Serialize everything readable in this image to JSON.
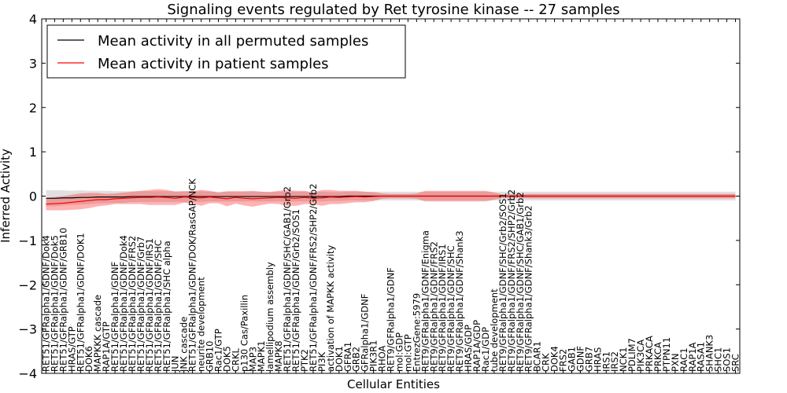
{
  "chart_data": {
    "type": "line",
    "title": "Signaling events regulated by Ret tyrosine kinase -- 27 samples",
    "xlabel": "Cellular Entities",
    "ylabel": "Inferred Activity",
    "ylim": [
      -4,
      4
    ],
    "yticks": [
      -4,
      -3,
      -2,
      -1,
      0,
      1,
      2,
      3,
      4
    ],
    "grid": false,
    "legend_position": "top-left",
    "categories": [
      "RET51/GFRalpha1/GDNF/Dok4",
      "RET51/GFRalpha1/GDNF/Dok5",
      "RET51/GFRalpha1/GDNF/GRB10",
      "HRAS/GTP",
      "RET51/GFRalpha1/GDNF/DOK1",
      "DOK6",
      "MAPKKK cascade",
      "RAP1A/GTP",
      "RET51/GFRalpha1/GDNF",
      "RET51/GFRalpha1/GDNF/Dok4",
      "RET51/GFRalpha1/GDNF/FRS2",
      "RET51/GFRalpha1/GDNF/Grb7",
      "RET51/GFRalpha1/GDNF/IRS1",
      "RET51/GFRalpha1/GDNF/SHC",
      "RET51/GFRalpha1/SHC alpha",
      "JUN",
      "JNK cascade",
      "RET51/GFRalpha1/GDNF/DOK/RasGAP/NCK",
      "neurite development",
      "GRB10",
      "Rac1/GTP",
      "DOK5",
      "CRKL",
      "p130 Cas/Paxillin",
      "MAP3",
      "MAPK1",
      "lamellipodium assembly",
      "MAPK8",
      "RET51/GFRalpha1/GDNF/SHC/GAB1/Grb2",
      "RET51/GFRalpha1/GDNF/Grb2/SOS1",
      "PTK2",
      "RET51/GFRalpha1/GDNF/FRS2/SHP2/Grb2",
      "PI3K",
      "activation of MAPKK activity",
      "DOK1",
      "GFRA1",
      "GRB2",
      "GFRalpha1/GDNF",
      "PIK3R1",
      "RHOA",
      "RET9/GFRalpha1/GDNF",
      "mol:GDP",
      "mol:GTP",
      "EntrezGene:5979",
      "RET9/GFRalpha1/GDNF/Enigma",
      "RET9/GFRalpha1/GDNF/FRS2",
      "RET9/GFRalpha1/GDNF/IRS1",
      "RET9/GFRalpha1/GDNF/SHC",
      "RET9/GFRalpha1/GDNF/Shank3",
      "HRAS/GDP",
      "RAP1A/GDP",
      "Rac1/GDP",
      "tube development",
      "RET9/GFRalpha1/GDNF/SHC/Grb2/SOS1",
      "RET9/GFRalpha1/GDNF/FRS2/SHP2/Grb2",
      "RET9/GFRalpha1/GDNF/SHC/GAB1/Grb2",
      "RET9/GFRalpha1/GDNF/Shank3/Grb2",
      "BCAR1",
      "CRK",
      "DOK4",
      "FRS2",
      "GAB1",
      "GDNF",
      "GRB7",
      "HRAS",
      "IRS1",
      "IRS2",
      "NCK1",
      "PDLIM7",
      "PIK3CA",
      "PRKACA",
      "PRKCA",
      "PTPN11",
      "PXN",
      "RAC1",
      "RAP1A",
      "RASA1",
      "SHANK3",
      "SHC1",
      "SOS1",
      "SRC"
    ],
    "series": [
      {
        "name": "Mean activity in all permuted samples",
        "color": "#000000",
        "values": [
          -0.05,
          -0.05,
          -0.04,
          -0.04,
          -0.03,
          -0.03,
          -0.02,
          -0.02,
          -0.02,
          -0.02,
          -0.01,
          -0.01,
          -0.01,
          -0.01,
          -0.01,
          -0.01,
          -0.01,
          -0.01,
          -0.01,
          -0.01,
          -0.01,
          -0.01,
          -0.01,
          -0.01,
          -0.01,
          -0.01,
          -0.01,
          -0.01,
          -0.01,
          -0.01,
          -0.01,
          -0.01,
          -0.01,
          -0.01,
          -0.01,
          0.0,
          0.0,
          0.0,
          0.0,
          0.0,
          0.0,
          0.0,
          0.0,
          0.0,
          0.0,
          0.0,
          0.0,
          0.0,
          0.0,
          0.0,
          0.0,
          0.0,
          0.0,
          0.0,
          0.0,
          0.0,
          0.0,
          0.0,
          0.0,
          0.0,
          0.0,
          0.0,
          0.0,
          0.0,
          0.0,
          0.0,
          0.0,
          0.0,
          0.0,
          0.0,
          0.0,
          0.0,
          0.0,
          0.0,
          0.0,
          0.0,
          0.0,
          0.0,
          0.0,
          0.0,
          0.0
        ],
        "band": [
          0.18,
          0.18,
          0.17,
          0.16,
          0.16,
          0.15,
          0.14,
          0.14,
          0.13,
          0.13,
          0.12,
          0.12,
          0.12,
          0.12,
          0.12,
          0.12,
          0.12,
          0.12,
          0.12,
          0.11,
          0.11,
          0.11,
          0.11,
          0.11,
          0.11,
          0.11,
          0.11,
          0.11,
          0.11,
          0.11,
          0.11,
          0.11,
          0.11,
          0.1,
          0.1,
          0.1,
          0.1,
          0.1,
          0.1,
          0.1,
          0.1,
          0.1,
          0.1,
          0.1,
          0.1,
          0.1,
          0.1,
          0.1,
          0.1,
          0.1,
          0.1,
          0.1,
          0.1,
          0.1,
          0.1,
          0.1,
          0.1,
          0.1,
          0.1,
          0.1,
          0.1,
          0.1,
          0.1,
          0.1,
          0.1,
          0.1,
          0.1,
          0.1,
          0.1,
          0.1,
          0.1,
          0.1,
          0.1,
          0.1,
          0.1,
          0.1,
          0.1,
          0.1,
          0.1,
          0.1,
          0.1
        ]
      },
      {
        "name": "Mean activity in patient samples",
        "color": "#ff0000",
        "values": [
          -0.18,
          -0.17,
          -0.16,
          -0.14,
          -0.12,
          -0.1,
          -0.08,
          -0.08,
          -0.06,
          -0.05,
          -0.04,
          -0.03,
          -0.03,
          -0.02,
          -0.03,
          -0.05,
          -0.02,
          -0.03,
          -0.04,
          -0.02,
          -0.04,
          -0.06,
          -0.03,
          -0.05,
          -0.06,
          -0.05,
          -0.04,
          -0.03,
          -0.04,
          -0.05,
          -0.03,
          -0.05,
          -0.04,
          -0.02,
          -0.03,
          -0.02,
          -0.01,
          -0.02,
          -0.01,
          0.0,
          0.0,
          0.0,
          0.0,
          0.0,
          0.0,
          0.0,
          0.0,
          0.0,
          0.0,
          0.0,
          0.0,
          0.0,
          0.0,
          0.0,
          0.0,
          0.0,
          0.0,
          0.0,
          0.0,
          0.0,
          0.0,
          0.0,
          0.0,
          0.0,
          0.0,
          0.0,
          0.0,
          0.0,
          0.0,
          0.0,
          0.0,
          0.0,
          0.0,
          0.0,
          0.0,
          0.0,
          0.0,
          0.0,
          0.0,
          0.0,
          0.0
        ],
        "band": [
          0.14,
          0.15,
          0.16,
          0.17,
          0.18,
          0.17,
          0.15,
          0.13,
          0.12,
          0.13,
          0.14,
          0.15,
          0.17,
          0.18,
          0.17,
          0.15,
          0.13,
          0.14,
          0.18,
          0.14,
          0.12,
          0.17,
          0.14,
          0.16,
          0.18,
          0.15,
          0.13,
          0.15,
          0.18,
          0.17,
          0.15,
          0.13,
          0.18,
          0.16,
          0.15,
          0.14,
          0.13,
          0.12,
          0.1,
          0.06,
          0.05,
          0.05,
          0.05,
          0.06,
          0.12,
          0.12,
          0.12,
          0.12,
          0.12,
          0.12,
          0.12,
          0.12,
          0.08,
          0.04,
          0.04,
          0.04,
          0.05,
          0.05,
          0.05,
          0.05,
          0.05,
          0.05,
          0.05,
          0.05,
          0.05,
          0.05,
          0.05,
          0.05,
          0.05,
          0.05,
          0.05,
          0.05,
          0.05,
          0.05,
          0.05,
          0.05,
          0.05,
          0.05,
          0.05,
          0.05,
          0.05
        ]
      }
    ]
  }
}
